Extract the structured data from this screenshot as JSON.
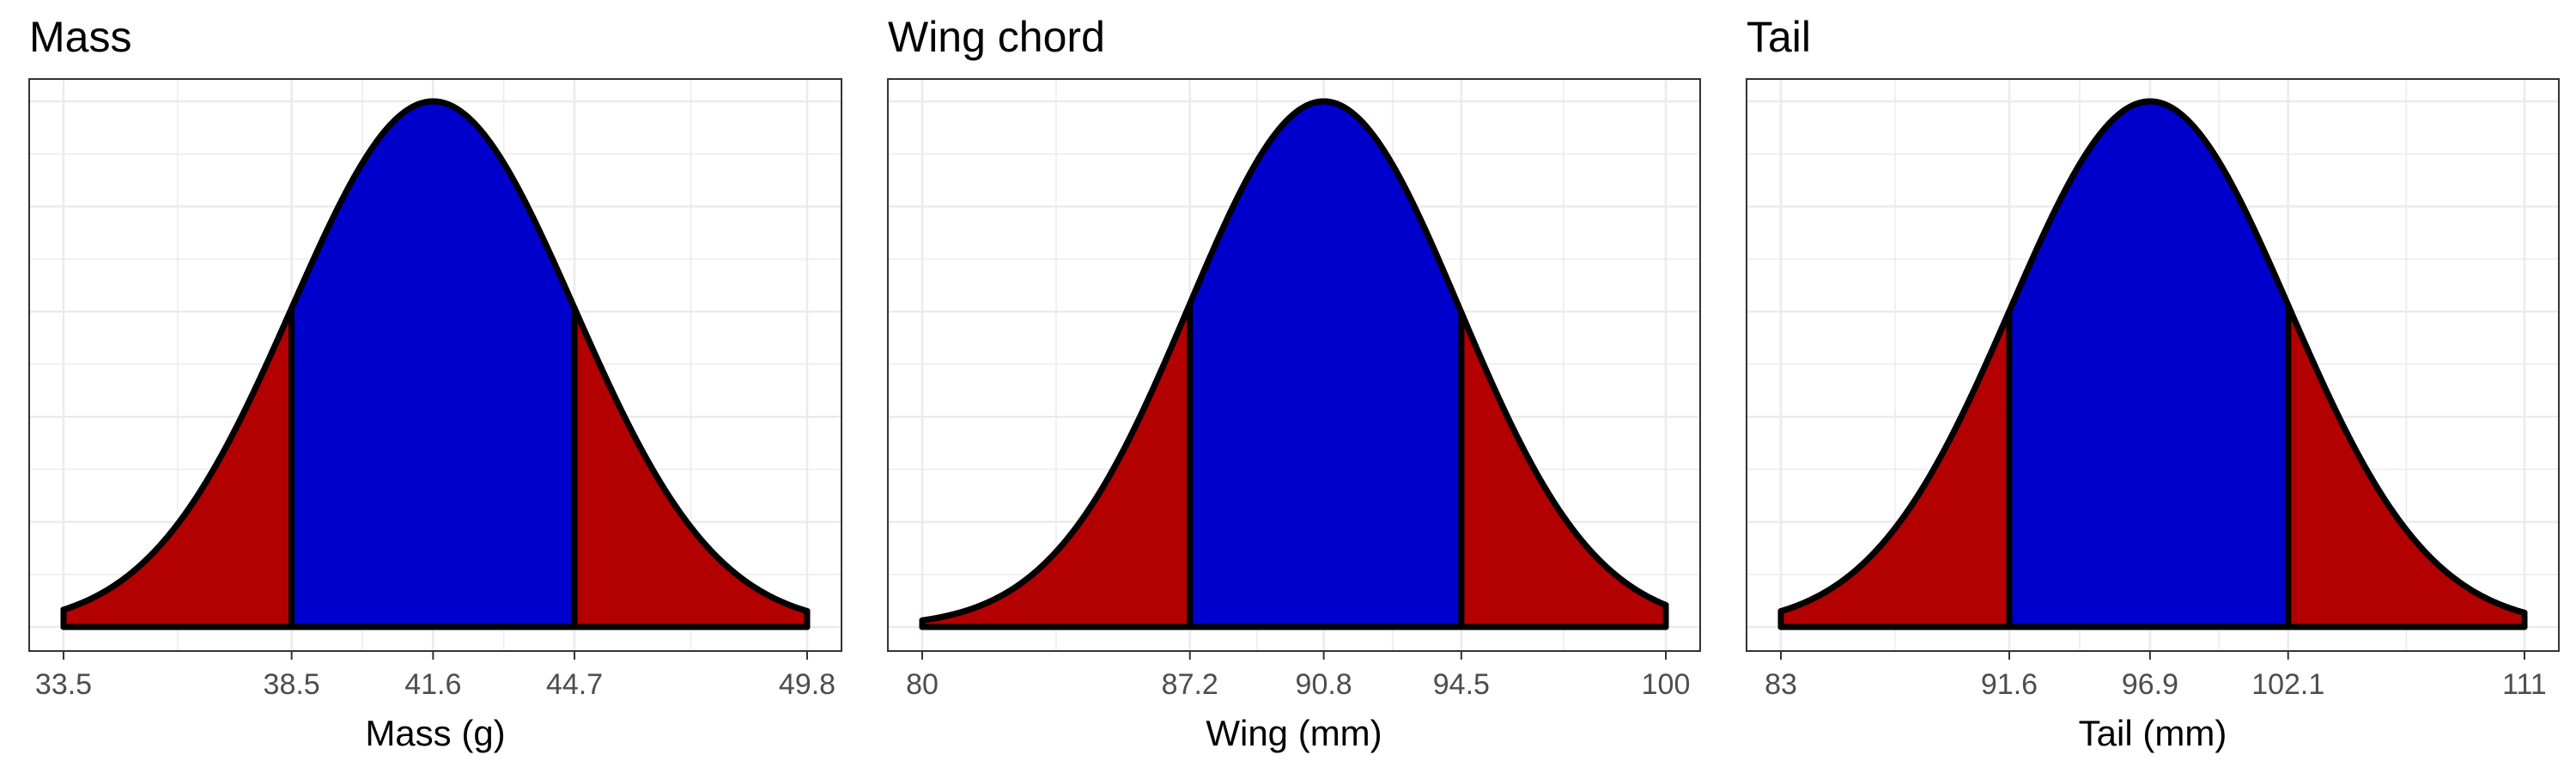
{
  "colors": {
    "central": "#0000cd",
    "tails": "#b30000",
    "outline": "#000000",
    "grid": "#ebebeb",
    "border": "#333333"
  },
  "chart_data": [
    {
      "type": "area",
      "title": "Mass",
      "xlabel": "Mass (g)",
      "ylabel": "",
      "x_ticks": [
        "33.5",
        "38.5",
        "41.6",
        "44.7",
        "49.8"
      ],
      "distribution": {
        "kind": "normal",
        "mean": 41.6,
        "range": [
          33.5,
          49.8
        ]
      },
      "central_interval": [
        38.5,
        44.7
      ],
      "grid": true,
      "y_axis_labels": false
    },
    {
      "type": "area",
      "title": "Wing chord",
      "xlabel": "Wing (mm)",
      "ylabel": "",
      "x_ticks": [
        "80",
        "87.2",
        "90.8",
        "94.5",
        "100"
      ],
      "distribution": {
        "kind": "normal",
        "mean": 90.8,
        "range": [
          80,
          100
        ]
      },
      "central_interval": [
        87.2,
        94.5
      ],
      "grid": true,
      "y_axis_labels": false
    },
    {
      "type": "area",
      "title": "Tail",
      "xlabel": "Tail (mm)",
      "ylabel": "",
      "x_ticks": [
        "83",
        "91.6",
        "96.9",
        "102.1",
        "111"
      ],
      "distribution": {
        "kind": "normal",
        "mean": 96.9,
        "range": [
          83,
          111
        ]
      },
      "central_interval": [
        91.6,
        102.1
      ],
      "grid": true,
      "y_axis_labels": false
    }
  ]
}
